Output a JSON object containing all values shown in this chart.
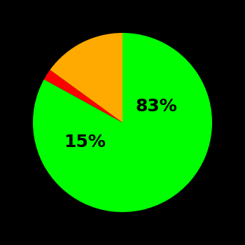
{
  "slices": [
    83,
    2,
    15
  ],
  "colors": [
    "#00ff00",
    "#ff0000",
    "#ffaa00"
  ],
  "labels": [
    "83%",
    "",
    "15%"
  ],
  "background_color": "#000000",
  "startangle": 90,
  "label_fontsize": 18,
  "label_fontweight": "bold",
  "label_positions": {
    "green_pct": [
      0.38,
      0.18
    ],
    "yellow_pct": [
      -0.42,
      -0.22
    ]
  }
}
